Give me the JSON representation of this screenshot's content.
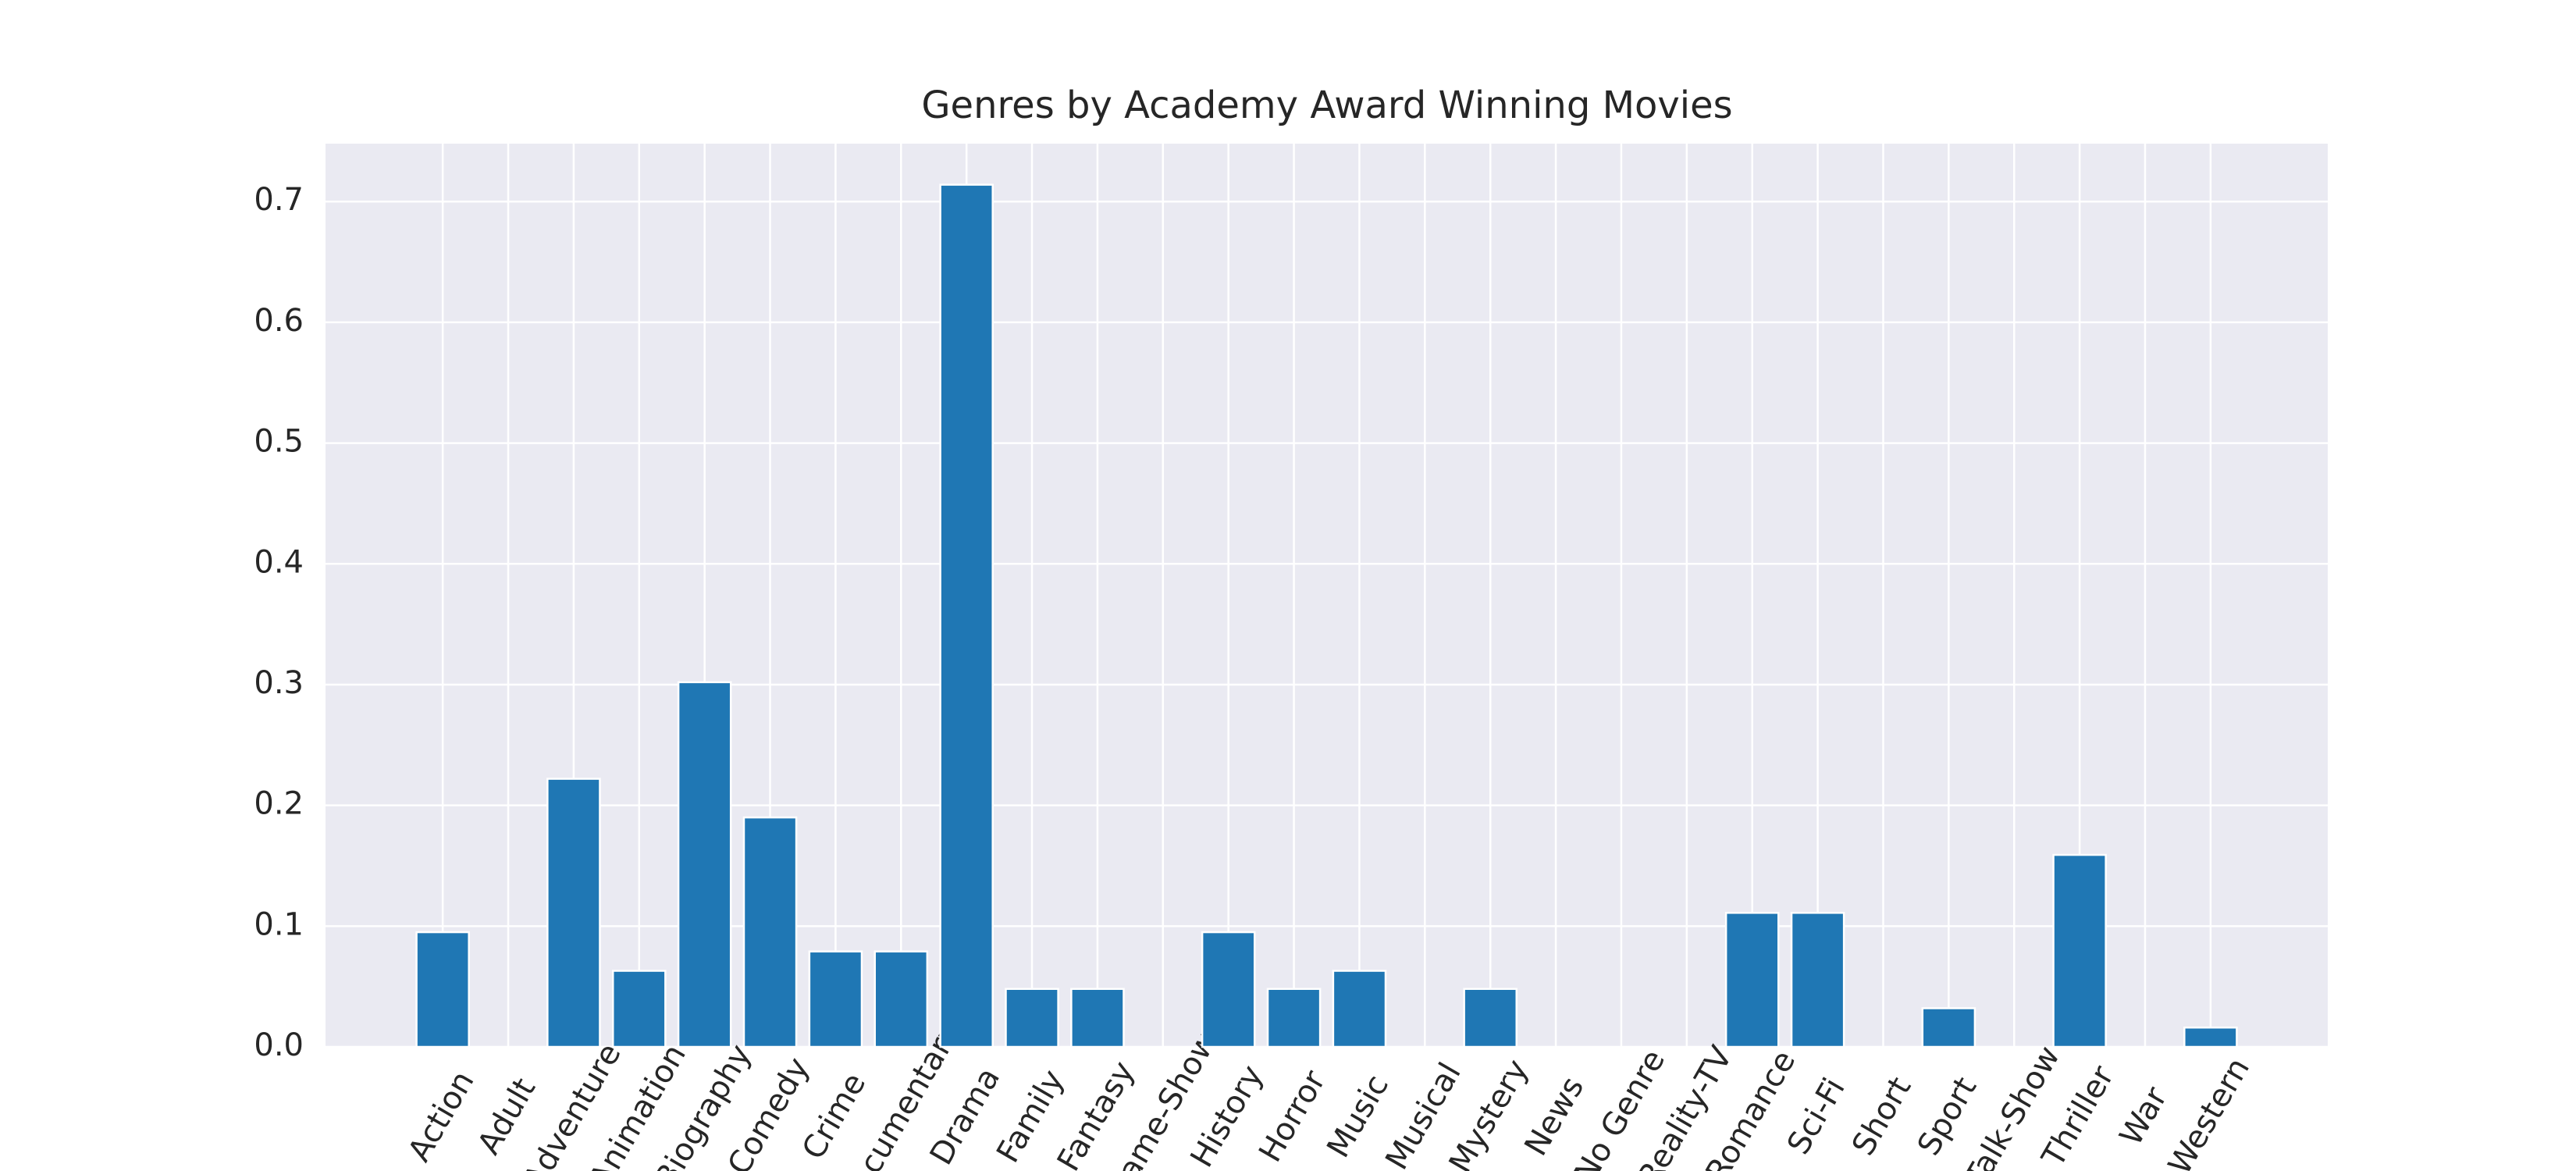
{
  "chart_data": {
    "type": "bar",
    "title": "Genres by Academy Award Winning Movies",
    "categories": [
      "Action",
      "Adult",
      "Adventure",
      "Animation",
      "Biography",
      "Comedy",
      "Crime",
      "Documentary",
      "Drama",
      "Family",
      "Fantasy",
      "Game-Show",
      "History",
      "Horror",
      "Music",
      "Musical",
      "Mystery",
      "News",
      "No Genre",
      "Reality-TV",
      "Romance",
      "Sci-Fi",
      "Short",
      "Sport",
      "Talk-Show",
      "Thriller",
      "War",
      "Western"
    ],
    "values": [
      0.095,
      0,
      0.222,
      0.063,
      0.302,
      0.19,
      0.079,
      0.079,
      0.714,
      0.048,
      0.048,
      0,
      0.095,
      0.048,
      0.063,
      0,
      0.048,
      0,
      0,
      0,
      0.111,
      0.111,
      0,
      0.032,
      0,
      0.159,
      0,
      0.016
    ],
    "color": "#1f77b4",
    "ylim": [
      0,
      0.748
    ],
    "yticks": [
      {
        "value": 0,
        "label": "0.0"
      },
      0.1,
      0.2,
      0.3,
      0.4,
      0.5,
      0.6,
      0.7
    ],
    "grid": true
  }
}
